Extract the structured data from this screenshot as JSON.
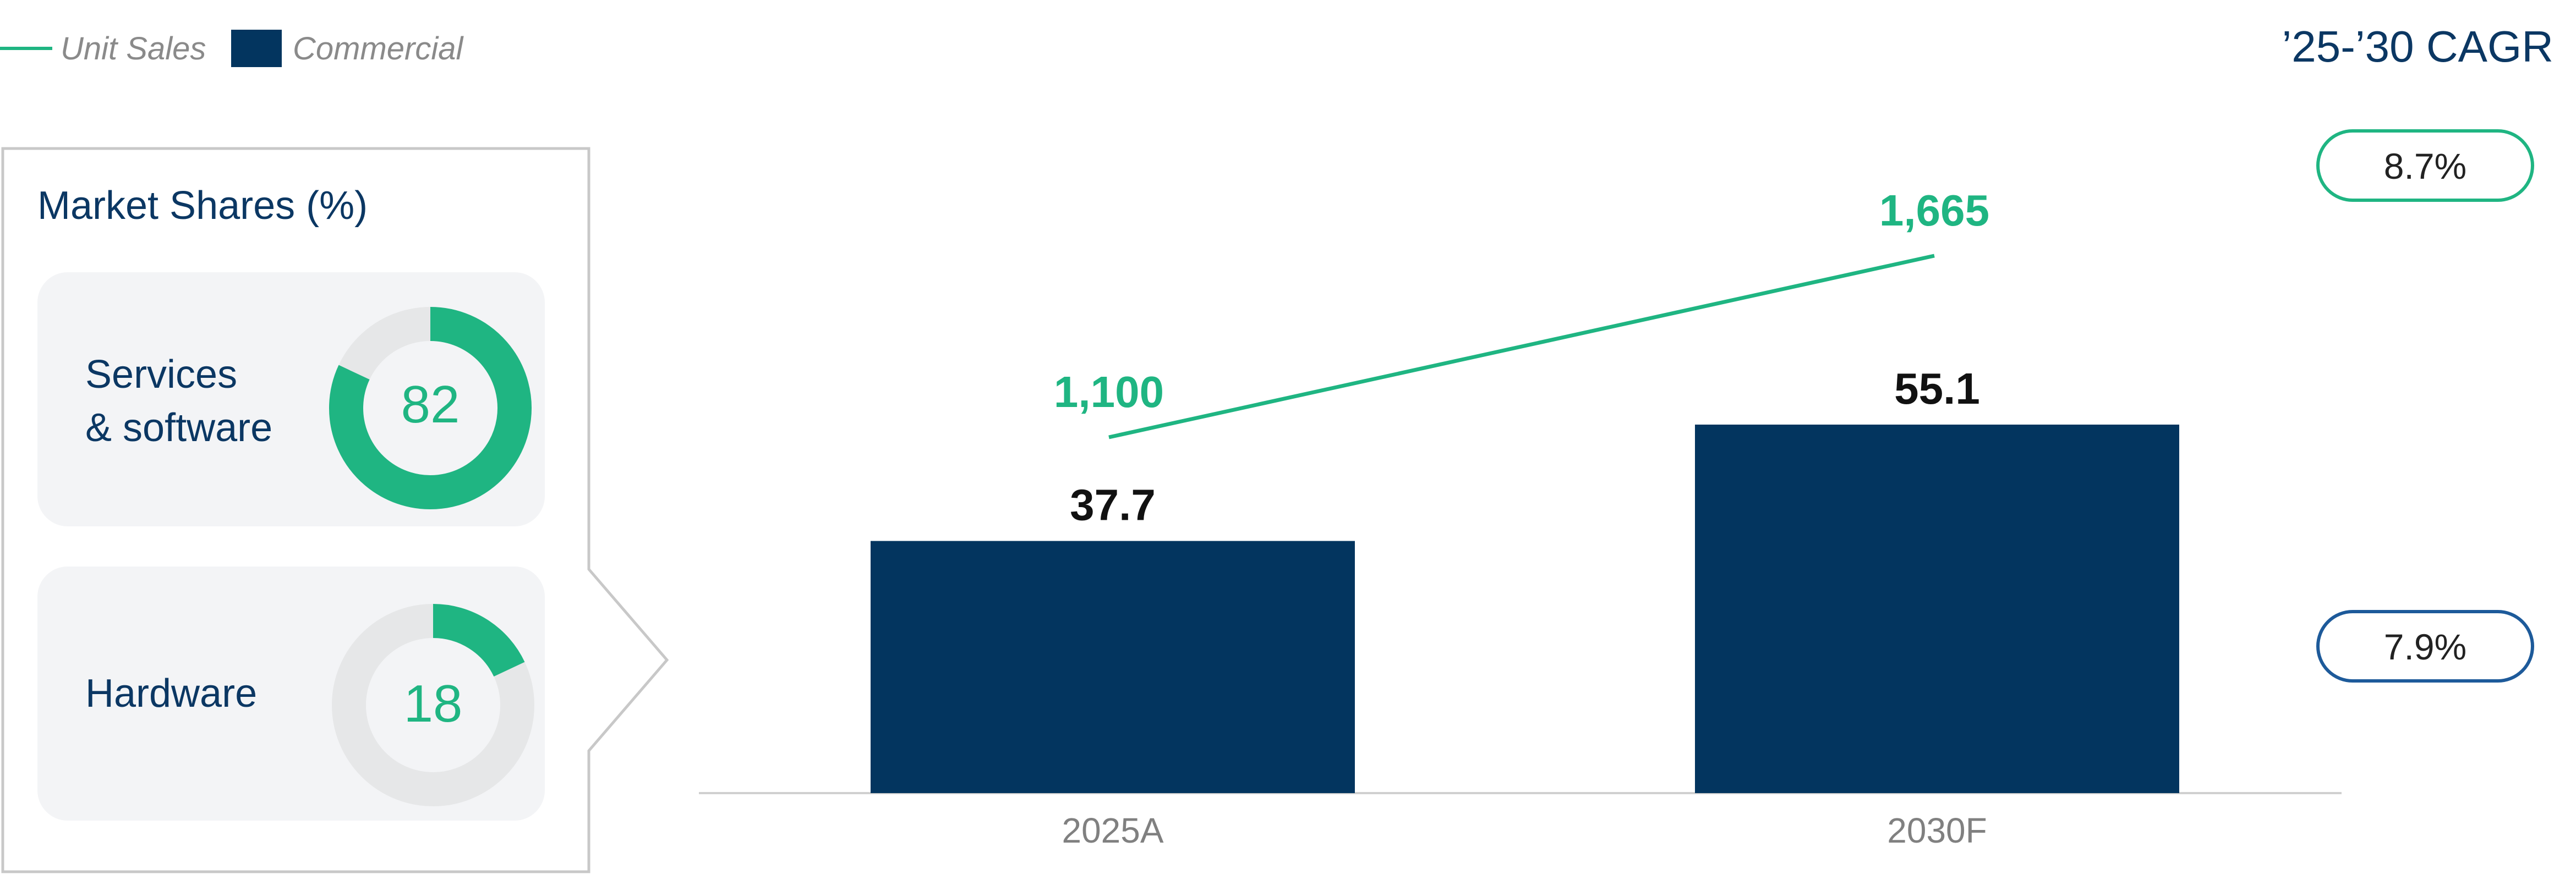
{
  "colors": {
    "commercial": "#03355f",
    "unit_sales": "#1fb582",
    "donut_track": "#e6e7e8",
    "card_bg": "#f3f4f6",
    "pill_green": "#1fb582",
    "pill_blue": "#1d5a9a",
    "axis": "#d0d0d0",
    "panel_border": "#c8c8c8"
  },
  "legend": {
    "unit_sales": "Unit Sales",
    "commercial": "Commercial"
  },
  "cagr": {
    "header": "’25-’30 CAGR",
    "unit_sales": "8.7%",
    "commercial": "7.9%"
  },
  "market_shares": {
    "title": "Market Shares (%)",
    "items": [
      {
        "label_line1": "Services",
        "label_line2": "& software",
        "value": 82
      },
      {
        "label_line1": "Hardware",
        "label_line2": "",
        "value": 18
      }
    ]
  },
  "chart_data": {
    "type": "bar",
    "categories": [
      "2025A",
      "2030F"
    ],
    "series": [
      {
        "name": "Commercial",
        "type": "bar",
        "values": [
          37.7,
          55.1
        ],
        "labels": [
          "37.7",
          "55.1"
        ]
      },
      {
        "name": "Unit Sales",
        "type": "line",
        "values": [
          1100,
          1665
        ],
        "labels": [
          "1,100",
          "1,665"
        ]
      }
    ],
    "title": "",
    "xlabel": "",
    "ylabel": "",
    "legend": "top-left",
    "grid": false
  }
}
